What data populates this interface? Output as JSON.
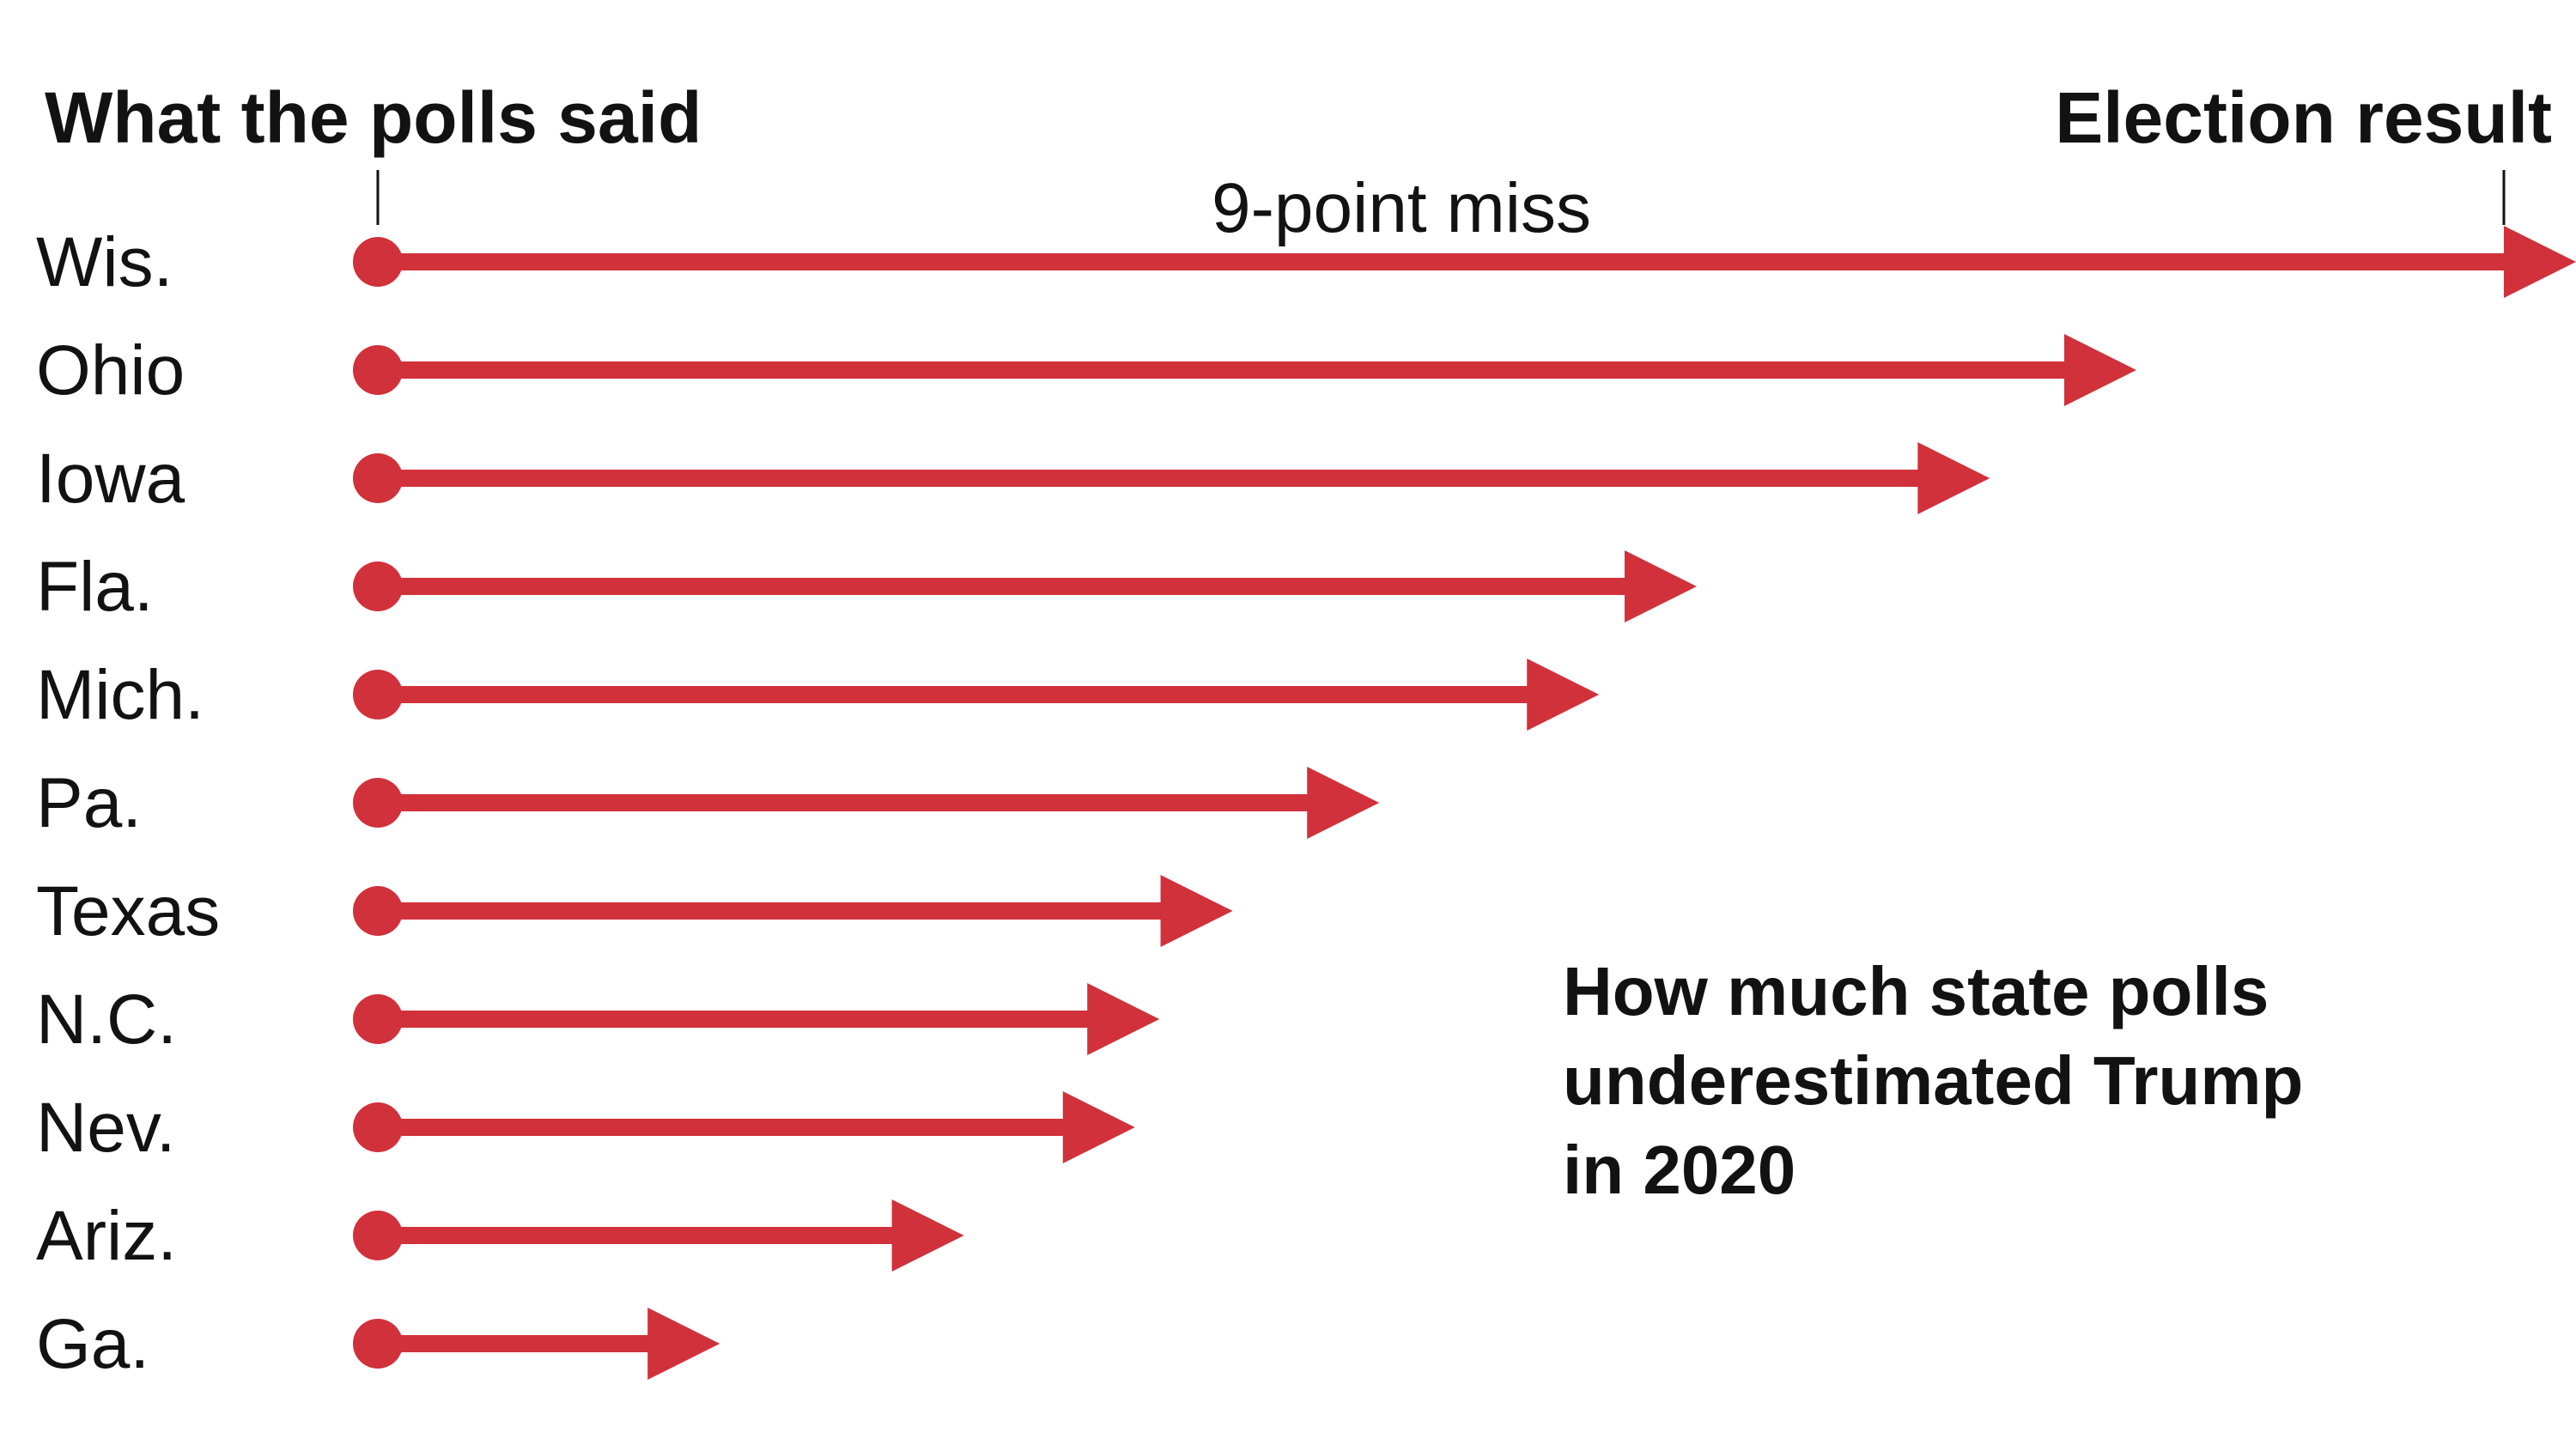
{
  "chart_data": {
    "type": "bar",
    "title": "How much state polls underestimated Trump in 2020",
    "title_lines": [
      "How much state polls",
      "underestimated Trump",
      "in 2020"
    ],
    "left_header": "What the polls said",
    "right_header": "Election result",
    "annotation": "9-point miss",
    "annotation_value": 9,
    "categories": [
      "Wis.",
      "Ohio",
      "Iowa",
      "Fla.",
      "Mich.",
      "Pa.",
      "Texas",
      "N.C.",
      "Nev.",
      "Ariz.",
      "Ga."
    ],
    "series": [
      {
        "values": [
          9.0,
          7.2,
          6.6,
          5.4,
          5.0,
          4.1,
          3.5,
          3.2,
          3.1,
          2.4,
          1.4
        ]
      }
    ],
    "xlim": [
      0,
      9
    ],
    "grid": false,
    "legend": "none",
    "colors": {
      "arrow": "#d1313a",
      "text": "#121212"
    }
  }
}
